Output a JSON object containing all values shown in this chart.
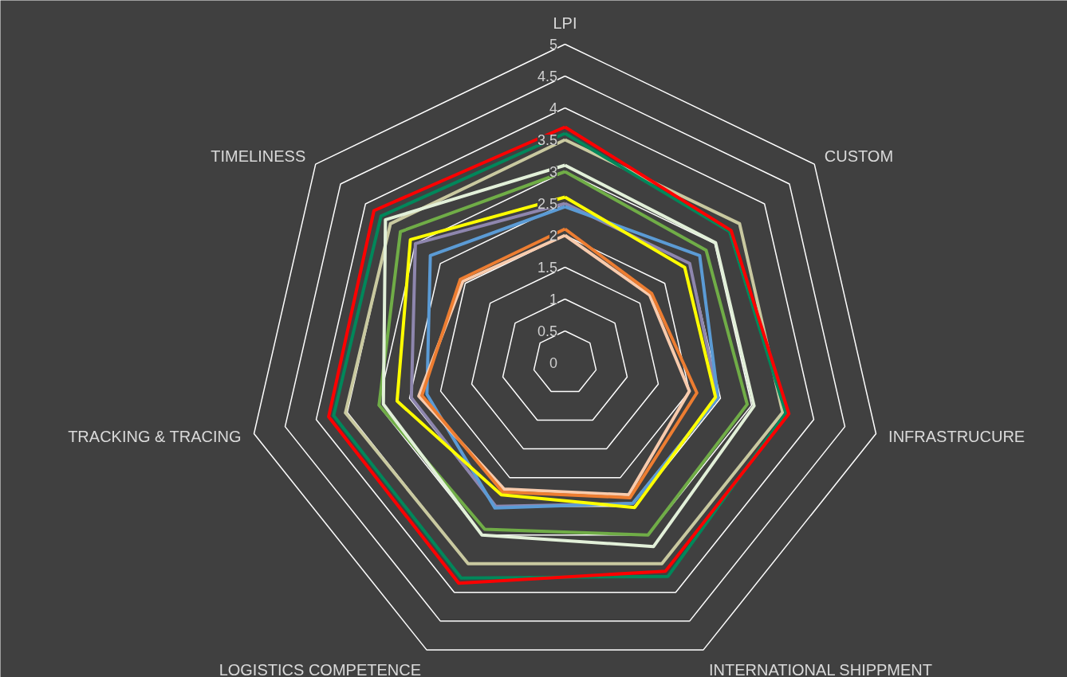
{
  "chart_data": {
    "type": "radar",
    "categories": [
      "LPI",
      "CUSTOM",
      "INFRASTRUCURE",
      "INTERNATIONAL SHIPPMENT",
      "LOGISTICS COMPETENCE",
      "TRACKING & TRACING",
      "TIMELINESS"
    ],
    "ylim": [
      0,
      5
    ],
    "yticks": [
      0,
      0.5,
      1,
      1.5,
      2,
      2.5,
      3,
      3.5,
      4,
      4.5,
      5
    ],
    "grid": true,
    "series": [
      {
        "color": "#c9c9a0",
        "values": [
          3.5,
          3.5,
          3.5,
          3.5,
          3.5,
          3.53,
          3.5
        ]
      },
      {
        "color": "#00875a",
        "values": [
          3.6,
          3.3,
          3.55,
          3.72,
          3.75,
          3.72,
          3.69
        ]
      },
      {
        "color": "#ff0000",
        "values": [
          3.7,
          3.33,
          3.6,
          3.63,
          3.84,
          3.8,
          3.83
        ]
      },
      {
        "color": "#70ad47",
        "values": [
          3.0,
          2.83,
          2.93,
          3.0,
          2.9,
          2.99,
          3.3
        ]
      },
      {
        "color": "#e2f0d9",
        "values": [
          3.1,
          3.02,
          3.04,
          3.2,
          3.0,
          2.92,
          3.6
        ]
      },
      {
        "color": "#8e86ae",
        "values": [
          2.5,
          2.5,
          2.46,
          2.45,
          2.5,
          2.47,
          3.0
        ]
      },
      {
        "color": "#5b9bd5",
        "values": [
          2.45,
          2.7,
          2.46,
          2.45,
          2.53,
          2.22,
          2.7
        ]
      },
      {
        "color": "#f8cbad",
        "values": [
          2.0,
          1.7,
          2.0,
          2.3,
          2.2,
          2.35,
          2.05
        ]
      },
      {
        "color": "#ed7d31",
        "values": [
          2.1,
          1.74,
          2.12,
          2.35,
          2.25,
          2.3,
          2.1
        ]
      },
      {
        "color": "#ffff00",
        "values": [
          2.6,
          2.4,
          2.42,
          2.52,
          2.3,
          2.7,
          3.1
        ]
      }
    ]
  }
}
